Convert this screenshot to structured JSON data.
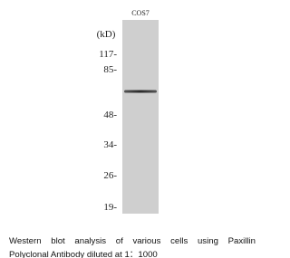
{
  "lane_label": "COS7",
  "unit_label": "(kD)",
  "markers": [
    "117-",
    "85-",
    "48-",
    "34-",
    "26-",
    "19-"
  ],
  "caption": [
    "Western blot analysis of various cells using Paxillin",
    "Polyclonal Antibody diluted at 1：1000"
  ]
}
